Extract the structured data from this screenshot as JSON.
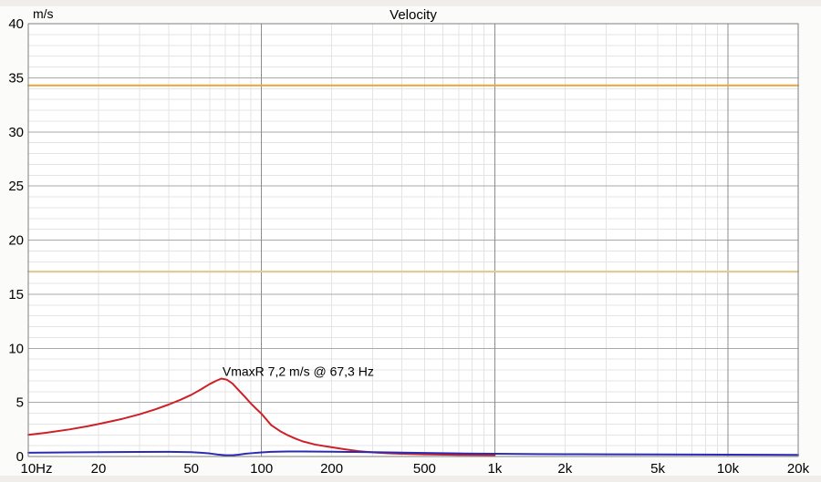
{
  "chart_data": {
    "type": "line",
    "title": "Velocity",
    "ylabel": "m/s",
    "xlabel": "",
    "x_scale": "log",
    "xlim": [
      10,
      20000
    ],
    "ylim": [
      0,
      40
    ],
    "grid": "on",
    "legend": "none",
    "y_major_step": 5,
    "y_minor_step": 1,
    "x_ticks": [
      {
        "f": 10,
        "label": "10Hz"
      },
      {
        "f": 20,
        "label": "20"
      },
      {
        "f": 50,
        "label": "50"
      },
      {
        "f": 100,
        "label": "100"
      },
      {
        "f": 200,
        "label": "200"
      },
      {
        "f": 500,
        "label": "500"
      },
      {
        "f": 1000,
        "label": "1k"
      },
      {
        "f": 2000,
        "label": "2k"
      },
      {
        "f": 5000,
        "label": "5k"
      },
      {
        "f": 10000,
        "label": "10k"
      },
      {
        "f": 20000,
        "label": "20k"
      }
    ],
    "y_ticks": [
      {
        "v": 0,
        "label": "0"
      },
      {
        "v": 5,
        "label": "5"
      },
      {
        "v": 10,
        "label": "10"
      },
      {
        "v": 15,
        "label": "15"
      },
      {
        "v": 20,
        "label": "20"
      },
      {
        "v": 25,
        "label": "25"
      },
      {
        "v": 30,
        "label": "30"
      },
      {
        "v": 35,
        "label": "35"
      },
      {
        "v": 40,
        "label": "40"
      }
    ],
    "decade_lines": [
      100,
      1000,
      10000
    ],
    "annotation": {
      "text": "VmaxR 7,2 m/s @ 67,3 Hz",
      "freq": 68,
      "value": 7.45,
      "color": "#cd2027"
    },
    "peak": {
      "series": "VmaxR",
      "value_ms": 7.2,
      "freq_hz": 67.3
    },
    "series": [
      {
        "id": "upper-limit-line",
        "color": "#e8a53e",
        "width": 2,
        "points": [
          [
            10,
            34.3
          ],
          [
            20000,
            34.3
          ]
        ]
      },
      {
        "id": "lower-limit-line",
        "color": "#e6c98f",
        "width": 2,
        "points": [
          [
            10,
            17.1
          ],
          [
            20000,
            17.1
          ]
        ]
      },
      {
        "id": "red-velocity-curve",
        "color": "#cd2027",
        "width": 2,
        "points": [
          [
            10,
            2.0
          ],
          [
            12,
            2.2
          ],
          [
            15,
            2.5
          ],
          [
            18,
            2.8
          ],
          [
            20,
            3.0
          ],
          [
            25,
            3.45
          ],
          [
            30,
            3.9
          ],
          [
            35,
            4.35
          ],
          [
            40,
            4.8
          ],
          [
            45,
            5.25
          ],
          [
            50,
            5.7
          ],
          [
            55,
            6.2
          ],
          [
            60,
            6.7
          ],
          [
            64,
            7.0
          ],
          [
            67.3,
            7.2
          ],
          [
            71,
            7.1
          ],
          [
            75,
            6.75
          ],
          [
            80,
            6.1
          ],
          [
            85,
            5.5
          ],
          [
            90,
            4.9
          ],
          [
            95,
            4.4
          ],
          [
            100,
            3.95
          ],
          [
            110,
            2.9
          ],
          [
            120,
            2.35
          ],
          [
            130,
            1.95
          ],
          [
            140,
            1.65
          ],
          [
            150,
            1.4
          ],
          [
            170,
            1.1
          ],
          [
            200,
            0.85
          ],
          [
            230,
            0.65
          ],
          [
            260,
            0.5
          ],
          [
            300,
            0.38
          ],
          [
            350,
            0.3
          ],
          [
            400,
            0.25
          ],
          [
            500,
            0.2
          ],
          [
            700,
            0.15
          ],
          [
            1000,
            0.13
          ]
        ]
      },
      {
        "id": "blue-velocity-curve",
        "color": "#2a2cb4",
        "width": 2,
        "points": [
          [
            10,
            0.35
          ],
          [
            15,
            0.38
          ],
          [
            20,
            0.4
          ],
          [
            30,
            0.42
          ],
          [
            40,
            0.43
          ],
          [
            50,
            0.4
          ],
          [
            55,
            0.35
          ],
          [
            60,
            0.28
          ],
          [
            65,
            0.18
          ],
          [
            70,
            0.12
          ],
          [
            75,
            0.12
          ],
          [
            80,
            0.17
          ],
          [
            85,
            0.25
          ],
          [
            90,
            0.3
          ],
          [
            100,
            0.38
          ],
          [
            110,
            0.43
          ],
          [
            130,
            0.46
          ],
          [
            150,
            0.46
          ],
          [
            200,
            0.44
          ],
          [
            250,
            0.42
          ],
          [
            300,
            0.4
          ],
          [
            400,
            0.36
          ],
          [
            500,
            0.33
          ],
          [
            700,
            0.28
          ],
          [
            1000,
            0.25
          ],
          [
            1500,
            0.22
          ],
          [
            2000,
            0.21
          ],
          [
            3000,
            0.2
          ],
          [
            5000,
            0.19
          ],
          [
            10000,
            0.17
          ],
          [
            15000,
            0.16
          ],
          [
            20000,
            0.15
          ]
        ]
      }
    ],
    "colors": {
      "plot_background": "#ffffff",
      "page_background": "#fbfbf9",
      "border": "#7f7f7f",
      "grid_minor": "#e4e4e4",
      "grid_major": "#a9a9a9",
      "grid_decade": "#8c8c8c",
      "text": "#000000"
    }
  }
}
